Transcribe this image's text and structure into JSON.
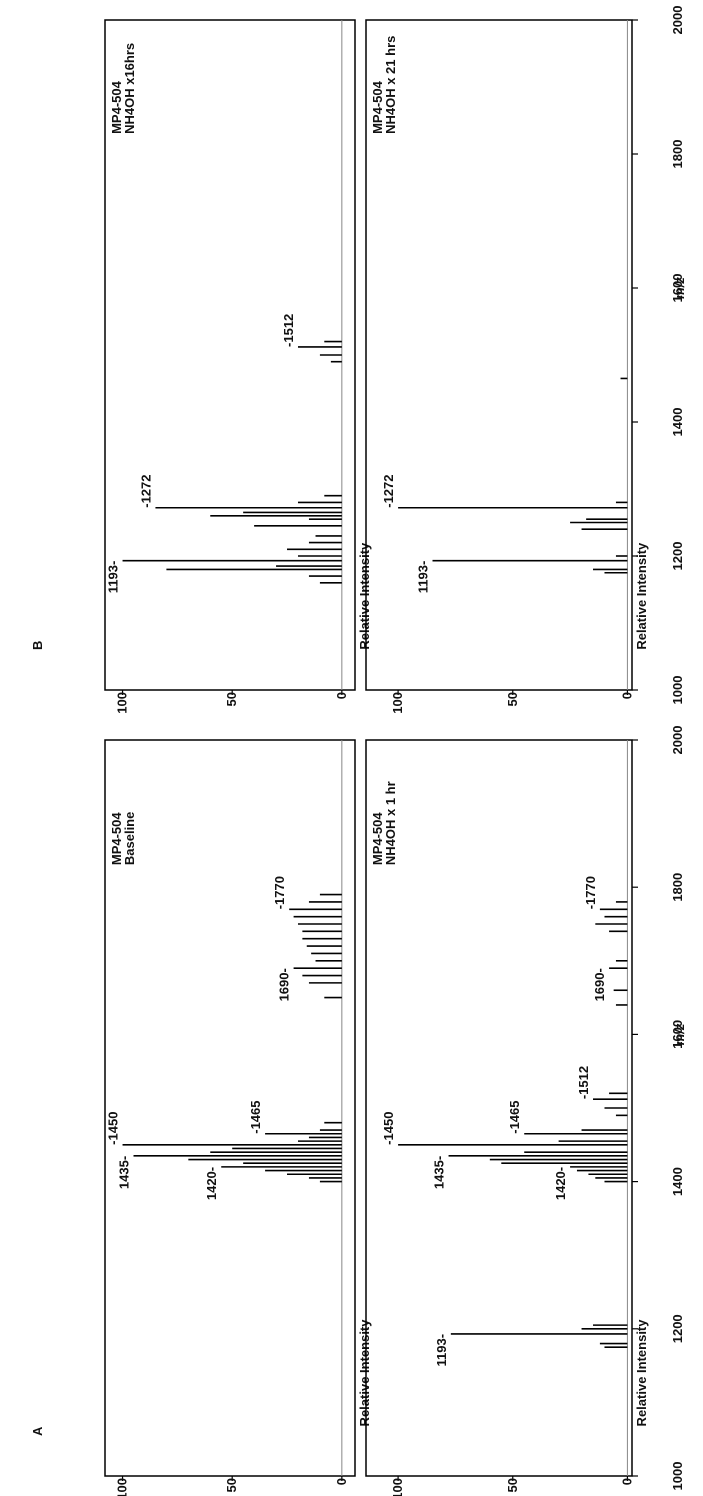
{
  "chart_data": [
    {
      "type": "bar",
      "panel_label": "A",
      "title": [
        "MP4-504",
        "Baseline"
      ],
      "ylabel": "Relative Intensity",
      "color": "#000000",
      "xlim": [
        1000,
        2000
      ],
      "ylim": [
        -6,
        108
      ],
      "yticks": [
        0,
        50,
        100
      ],
      "x": [
        1400,
        1405,
        1410,
        1415,
        1420,
        1425,
        1430,
        1435,
        1440,
        1445,
        1450,
        1455,
        1460,
        1465,
        1470,
        1480,
        1650,
        1670,
        1680,
        1690,
        1700,
        1710,
        1720,
        1730,
        1740,
        1750,
        1760,
        1770,
        1780,
        1790
      ],
      "values": [
        10,
        15,
        25,
        35,
        55,
        45,
        70,
        95,
        60,
        50,
        100,
        20,
        15,
        35,
        10,
        8,
        8,
        15,
        18,
        22,
        12,
        14,
        16,
        18,
        18,
        20,
        22,
        24,
        15,
        10
      ],
      "annotations": [
        {
          "text": "1420-",
          "x": 1420
        },
        {
          "text": "1435-",
          "x": 1435
        },
        {
          "text": "-1450",
          "x": 1450
        },
        {
          "text": "-1465",
          "x": 1465
        },
        {
          "text": "1690-",
          "x": 1690
        },
        {
          "text": "-1770",
          "x": 1770
        }
      ]
    },
    {
      "type": "bar",
      "title": [
        "MP4-504",
        "NH4OH x 1 hr"
      ],
      "ylabel": "Relative Intensity",
      "xlabel": "m/z",
      "color": "#000000",
      "xlim": [
        1000,
        2000
      ],
      "ylim": [
        -2,
        114
      ],
      "yticks": [
        0,
        50,
        100
      ],
      "xticks": [
        1000,
        1200,
        1400,
        1600,
        1800,
        2000
      ],
      "x": [
        1175,
        1180,
        1193,
        1200,
        1205,
        1400,
        1405,
        1410,
        1415,
        1420,
        1425,
        1430,
        1435,
        1440,
        1450,
        1455,
        1465,
        1470,
        1490,
        1500,
        1512,
        1520,
        1640,
        1660,
        1690,
        1700,
        1740,
        1750,
        1760,
        1770,
        1780
      ],
      "values": [
        10,
        12,
        77,
        20,
        15,
        10,
        14,
        17,
        22,
        25,
        55,
        60,
        78,
        45,
        100,
        30,
        45,
        20,
        5,
        10,
        15,
        8,
        5,
        6,
        8,
        5,
        8,
        14,
        10,
        12,
        5
      ],
      "annotations": [
        {
          "text": "1193-",
          "x": 1193
        },
        {
          "text": "1420-",
          "x": 1420
        },
        {
          "text": "1435-",
          "x": 1435
        },
        {
          "text": "-1450",
          "x": 1450
        },
        {
          "text": "-1465",
          "x": 1465
        },
        {
          "text": "-1512",
          "x": 1512
        },
        {
          "text": "1690-",
          "x": 1690
        },
        {
          "text": "-1770",
          "x": 1770
        }
      ]
    },
    {
      "type": "bar",
      "panel_label": "B",
      "title": [
        "MP4-504",
        "NH4OH x16hrs"
      ],
      "ylabel": "Relative Intensity",
      "color": "#000000",
      "xlim": [
        1000,
        2000
      ],
      "ylim": [
        -6,
        108
      ],
      "yticks": [
        0,
        50,
        100
      ],
      "x": [
        1160,
        1170,
        1180,
        1185,
        1193,
        1200,
        1210,
        1220,
        1230,
        1245,
        1255,
        1260,
        1265,
        1272,
        1280,
        1290,
        1490,
        1500,
        1512,
        1520
      ],
      "values": [
        10,
        15,
        80,
        30,
        100,
        20,
        25,
        15,
        12,
        40,
        15,
        60,
        45,
        85,
        20,
        8,
        5,
        10,
        20,
        8
      ],
      "annotations": [
        {
          "text": "1193-",
          "x": 1193
        },
        {
          "text": "-1272",
          "x": 1272
        },
        {
          "text": "-1512",
          "x": 1512
        }
      ]
    },
    {
      "type": "bar",
      "title": [
        "MP4-504",
        "NH4OH x 21 hrs"
      ],
      "ylabel": "Relative Intensity",
      "xlabel": "m/z",
      "color": "#000000",
      "xlim": [
        1000,
        2000
      ],
      "ylim": [
        -2,
        114
      ],
      "yticks": [
        0,
        50,
        100
      ],
      "xticks": [
        1000,
        1200,
        1400,
        1600,
        1800,
        2000
      ],
      "x": [
        1175,
        1180,
        1193,
        1200,
        1240,
        1250,
        1255,
        1272,
        1280,
        1465
      ],
      "values": [
        10,
        15,
        85,
        5,
        20,
        25,
        18,
        100,
        5,
        3
      ],
      "annotations": [
        {
          "text": "1193-",
          "x": 1193
        },
        {
          "text": "-1272",
          "x": 1272
        }
      ]
    }
  ]
}
